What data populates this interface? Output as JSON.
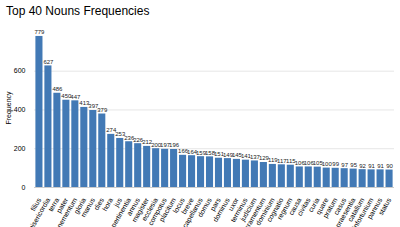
{
  "chart_data": {
    "type": "bar",
    "title": "Top 40 Nouns Frequencies",
    "y_label": "Frequency",
    "categories": [
      "filius",
      "misericordia",
      "terra",
      "pater",
      "tenementum",
      "gloria",
      "manus",
      "dies",
      "hora",
      "jus",
      "pertinentia",
      "annus",
      "magister",
      "ecclesia",
      "compotus",
      "placitum",
      "locus",
      "breve",
      "capellanus",
      "domus",
      "pars",
      "dominus",
      "uxor",
      "terminus",
      "judicium",
      "sacramentum",
      "dominium",
      "cognatio",
      "regnum",
      "causa",
      "civitas",
      "curia",
      "quare",
      "pratum",
      "casus",
      "praesentia",
      "catallum",
      "infortunium",
      "pannus",
      "status"
    ],
    "values": [
      779,
      627,
      486,
      450,
      447,
      413,
      397,
      379,
      274,
      253,
      236,
      226,
      212,
      200,
      197,
      196,
      166,
      164,
      159,
      158,
      151,
      149,
      145,
      141,
      137,
      129,
      119,
      117,
      115,
      106,
      106,
      105,
      100,
      99,
      97,
      95,
      92,
      91,
      91,
      90
    ],
    "color": "#4279b5",
    "ylim": [
      0,
      820
    ],
    "yticks": [
      0,
      200,
      400,
      600
    ],
    "grid": true,
    "data_labels": true
  }
}
